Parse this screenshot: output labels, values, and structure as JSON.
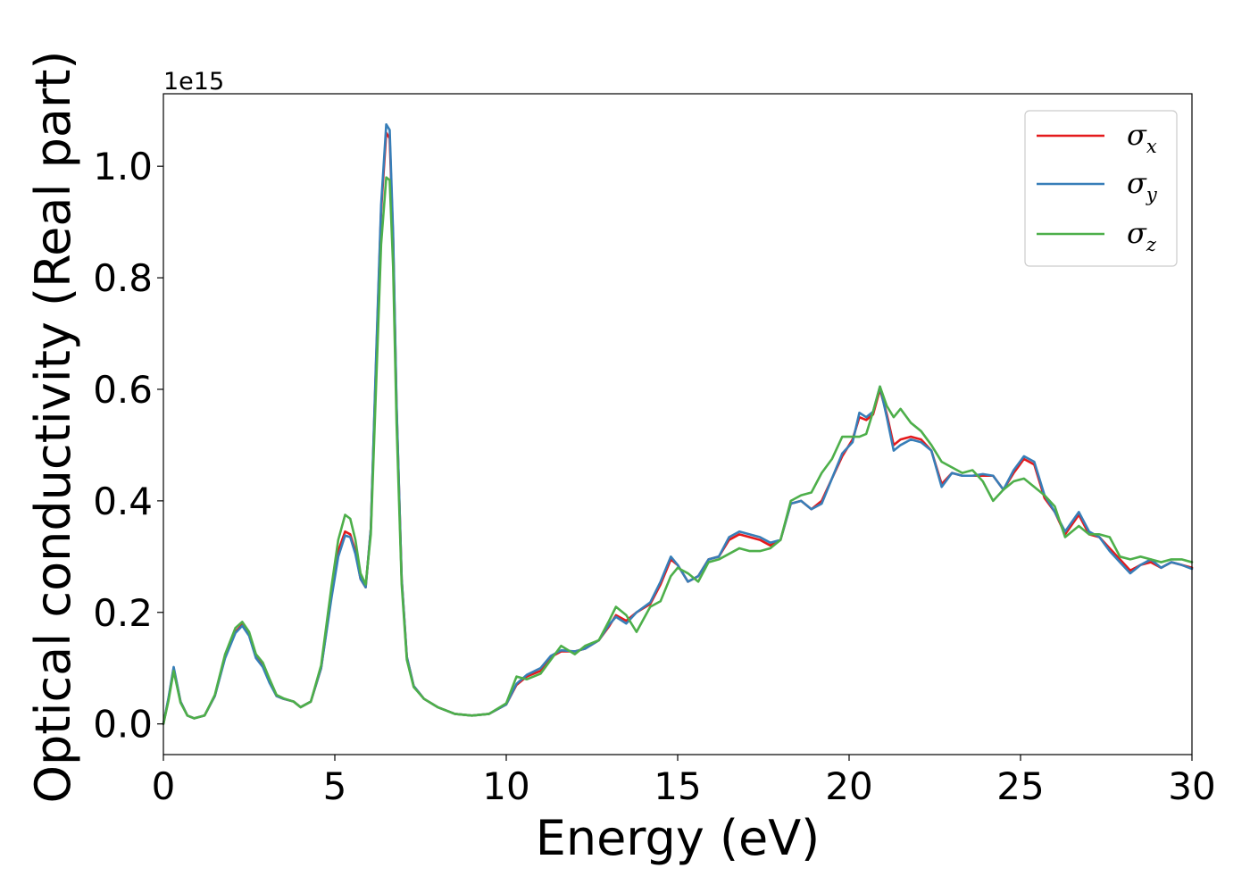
{
  "chart_data": {
    "type": "line",
    "title": "",
    "xlabel": "Energy (eV)",
    "ylabel": "Optical conductivity (Real part)",
    "y_offset_label": "1e15",
    "xlim": [
      0,
      30
    ],
    "ylim": [
      -0.055,
      1.13
    ],
    "xticks": [
      0,
      5,
      10,
      15,
      20,
      25,
      30
    ],
    "xtick_labels": [
      "0",
      "5",
      "10",
      "15",
      "20",
      "25",
      "30"
    ],
    "yticks": [
      0.0,
      0.2,
      0.4,
      0.6,
      0.8,
      1.0
    ],
    "ytick_labels": [
      "0.0",
      "0.2",
      "0.4",
      "0.6",
      "0.8",
      "1.0"
    ],
    "grid": false,
    "legend_position": "top-right",
    "series": [
      {
        "name": "σx",
        "legend_main": "σ",
        "legend_sub": "x",
        "color": "#e41a1c",
        "x": [
          0.0,
          0.15,
          0.3,
          0.5,
          0.7,
          0.9,
          1.2,
          1.5,
          1.8,
          2.1,
          2.3,
          2.5,
          2.7,
          2.9,
          3.1,
          3.3,
          3.5,
          3.8,
          4.0,
          4.3,
          4.6,
          4.9,
          5.1,
          5.3,
          5.45,
          5.6,
          5.75,
          5.9,
          6.05,
          6.2,
          6.35,
          6.5,
          6.6,
          6.7,
          6.8,
          6.95,
          7.1,
          7.3,
          7.6,
          8.0,
          8.5,
          9.0,
          9.5,
          10.0,
          10.3,
          10.6,
          11.0,
          11.3,
          11.6,
          12.0,
          12.3,
          12.7,
          13.0,
          13.2,
          13.5,
          13.8,
          14.2,
          14.5,
          14.8,
          15.0,
          15.3,
          15.6,
          15.9,
          16.2,
          16.5,
          16.8,
          17.1,
          17.4,
          17.7,
          18.0,
          18.3,
          18.6,
          18.9,
          19.2,
          19.5,
          19.8,
          20.1,
          20.3,
          20.5,
          20.7,
          20.9,
          21.1,
          21.3,
          21.5,
          21.8,
          22.1,
          22.4,
          22.7,
          23.0,
          23.3,
          23.6,
          23.9,
          24.2,
          24.5,
          24.8,
          25.1,
          25.4,
          25.7,
          26.0,
          26.3,
          26.7,
          27.0,
          27.3,
          27.6,
          27.9,
          28.2,
          28.5,
          28.8,
          29.1,
          29.4,
          29.7,
          30.0
        ],
        "values": [
          0.0,
          0.045,
          0.1,
          0.04,
          0.015,
          0.01,
          0.015,
          0.05,
          0.12,
          0.165,
          0.178,
          0.16,
          0.12,
          0.105,
          0.075,
          0.05,
          0.045,
          0.04,
          0.03,
          0.04,
          0.1,
          0.23,
          0.31,
          0.345,
          0.34,
          0.31,
          0.26,
          0.245,
          0.35,
          0.64,
          0.92,
          1.06,
          1.05,
          0.87,
          0.57,
          0.26,
          0.12,
          0.068,
          0.045,
          0.03,
          0.018,
          0.015,
          0.018,
          0.035,
          0.07,
          0.085,
          0.095,
          0.12,
          0.13,
          0.13,
          0.135,
          0.15,
          0.175,
          0.195,
          0.185,
          0.2,
          0.215,
          0.25,
          0.295,
          0.285,
          0.255,
          0.265,
          0.295,
          0.3,
          0.33,
          0.34,
          0.335,
          0.33,
          0.32,
          0.33,
          0.395,
          0.4,
          0.385,
          0.4,
          0.44,
          0.48,
          0.51,
          0.55,
          0.545,
          0.555,
          0.6,
          0.555,
          0.5,
          0.51,
          0.515,
          0.51,
          0.49,
          0.43,
          0.45,
          0.445,
          0.445,
          0.445,
          0.445,
          0.42,
          0.45,
          0.475,
          0.465,
          0.405,
          0.38,
          0.34,
          0.375,
          0.34,
          0.335,
          0.315,
          0.295,
          0.275,
          0.285,
          0.29,
          0.28,
          0.29,
          0.285,
          0.28
        ]
      },
      {
        "name": "σy",
        "legend_main": "σ",
        "legend_sub": "y",
        "color": "#377eb8",
        "x": [
          0.0,
          0.15,
          0.3,
          0.5,
          0.7,
          0.9,
          1.2,
          1.5,
          1.8,
          2.1,
          2.3,
          2.5,
          2.7,
          2.9,
          3.1,
          3.3,
          3.5,
          3.8,
          4.0,
          4.3,
          4.6,
          4.9,
          5.1,
          5.3,
          5.45,
          5.6,
          5.75,
          5.9,
          6.05,
          6.2,
          6.35,
          6.5,
          6.6,
          6.7,
          6.8,
          6.95,
          7.1,
          7.3,
          7.6,
          8.0,
          8.5,
          9.0,
          9.5,
          10.0,
          10.3,
          10.6,
          11.0,
          11.3,
          11.6,
          12.0,
          12.3,
          12.7,
          13.0,
          13.2,
          13.5,
          13.8,
          14.2,
          14.5,
          14.8,
          15.0,
          15.3,
          15.6,
          15.9,
          16.2,
          16.5,
          16.8,
          17.1,
          17.4,
          17.7,
          18.0,
          18.3,
          18.6,
          18.9,
          19.2,
          19.5,
          19.8,
          20.1,
          20.3,
          20.5,
          20.7,
          20.9,
          21.1,
          21.3,
          21.5,
          21.8,
          22.1,
          22.4,
          22.7,
          23.0,
          23.3,
          23.6,
          23.9,
          24.2,
          24.5,
          24.8,
          25.1,
          25.4,
          25.7,
          26.0,
          26.3,
          26.7,
          27.0,
          27.3,
          27.6,
          27.9,
          28.2,
          28.5,
          28.8,
          29.1,
          29.4,
          29.7,
          30.0
        ],
        "values": [
          0.0,
          0.047,
          0.102,
          0.04,
          0.015,
          0.01,
          0.015,
          0.05,
          0.118,
          0.163,
          0.176,
          0.158,
          0.118,
          0.102,
          0.073,
          0.05,
          0.045,
          0.04,
          0.03,
          0.04,
          0.1,
          0.225,
          0.3,
          0.338,
          0.335,
          0.305,
          0.26,
          0.245,
          0.35,
          0.65,
          0.93,
          1.075,
          1.065,
          0.88,
          0.575,
          0.26,
          0.12,
          0.068,
          0.045,
          0.03,
          0.018,
          0.015,
          0.018,
          0.035,
          0.072,
          0.088,
          0.1,
          0.122,
          0.132,
          0.13,
          0.135,
          0.15,
          0.178,
          0.192,
          0.18,
          0.2,
          0.218,
          0.255,
          0.3,
          0.285,
          0.255,
          0.265,
          0.295,
          0.3,
          0.335,
          0.345,
          0.34,
          0.335,
          0.325,
          0.33,
          0.395,
          0.4,
          0.385,
          0.395,
          0.44,
          0.485,
          0.505,
          0.558,
          0.55,
          0.56,
          0.605,
          0.55,
          0.49,
          0.5,
          0.51,
          0.505,
          0.49,
          0.425,
          0.45,
          0.445,
          0.445,
          0.448,
          0.445,
          0.42,
          0.455,
          0.48,
          0.47,
          0.41,
          0.38,
          0.345,
          0.38,
          0.345,
          0.335,
          0.31,
          0.29,
          0.27,
          0.285,
          0.295,
          0.28,
          0.29,
          0.285,
          0.278
        ]
      },
      {
        "name": "σz",
        "legend_main": "σ",
        "legend_sub": "z",
        "color": "#4daf4a",
        "x": [
          0.0,
          0.15,
          0.3,
          0.5,
          0.7,
          0.9,
          1.2,
          1.5,
          1.8,
          2.1,
          2.3,
          2.5,
          2.7,
          2.9,
          3.1,
          3.3,
          3.5,
          3.8,
          4.0,
          4.3,
          4.6,
          4.9,
          5.1,
          5.3,
          5.45,
          5.6,
          5.75,
          5.9,
          6.05,
          6.2,
          6.35,
          6.5,
          6.6,
          6.7,
          6.8,
          6.95,
          7.1,
          7.3,
          7.6,
          8.0,
          8.5,
          9.0,
          9.5,
          10.0,
          10.3,
          10.6,
          11.0,
          11.3,
          11.6,
          12.0,
          12.3,
          12.7,
          13.0,
          13.2,
          13.5,
          13.8,
          14.2,
          14.5,
          14.8,
          15.0,
          15.3,
          15.6,
          15.9,
          16.2,
          16.5,
          16.8,
          17.1,
          17.4,
          17.7,
          18.0,
          18.3,
          18.6,
          18.9,
          19.2,
          19.5,
          19.8,
          20.1,
          20.3,
          20.5,
          20.7,
          20.9,
          21.1,
          21.3,
          21.5,
          21.8,
          22.1,
          22.4,
          22.7,
          23.0,
          23.3,
          23.6,
          23.9,
          24.2,
          24.5,
          24.8,
          25.1,
          25.4,
          25.7,
          26.0,
          26.3,
          26.7,
          27.0,
          27.3,
          27.6,
          27.9,
          28.2,
          28.5,
          28.8,
          29.1,
          29.4,
          29.7,
          30.0
        ],
        "values": [
          0.0,
          0.042,
          0.095,
          0.038,
          0.015,
          0.01,
          0.015,
          0.052,
          0.125,
          0.172,
          0.183,
          0.165,
          0.125,
          0.11,
          0.08,
          0.052,
          0.046,
          0.04,
          0.03,
          0.04,
          0.105,
          0.245,
          0.33,
          0.375,
          0.368,
          0.33,
          0.27,
          0.25,
          0.34,
          0.6,
          0.86,
          0.98,
          0.975,
          0.82,
          0.54,
          0.25,
          0.115,
          0.066,
          0.045,
          0.03,
          0.018,
          0.015,
          0.018,
          0.037,
          0.085,
          0.08,
          0.09,
          0.115,
          0.14,
          0.125,
          0.14,
          0.15,
          0.185,
          0.21,
          0.195,
          0.165,
          0.21,
          0.22,
          0.265,
          0.28,
          0.27,
          0.255,
          0.29,
          0.295,
          0.305,
          0.315,
          0.31,
          0.31,
          0.315,
          0.33,
          0.4,
          0.41,
          0.415,
          0.45,
          0.475,
          0.515,
          0.515,
          0.515,
          0.52,
          0.56,
          0.605,
          0.57,
          0.55,
          0.565,
          0.54,
          0.525,
          0.5,
          0.47,
          0.46,
          0.45,
          0.455,
          0.435,
          0.4,
          0.42,
          0.435,
          0.44,
          0.425,
          0.41,
          0.39,
          0.335,
          0.355,
          0.34,
          0.34,
          0.335,
          0.3,
          0.295,
          0.3,
          0.295,
          0.29,
          0.295,
          0.295,
          0.29
        ]
      }
    ]
  }
}
